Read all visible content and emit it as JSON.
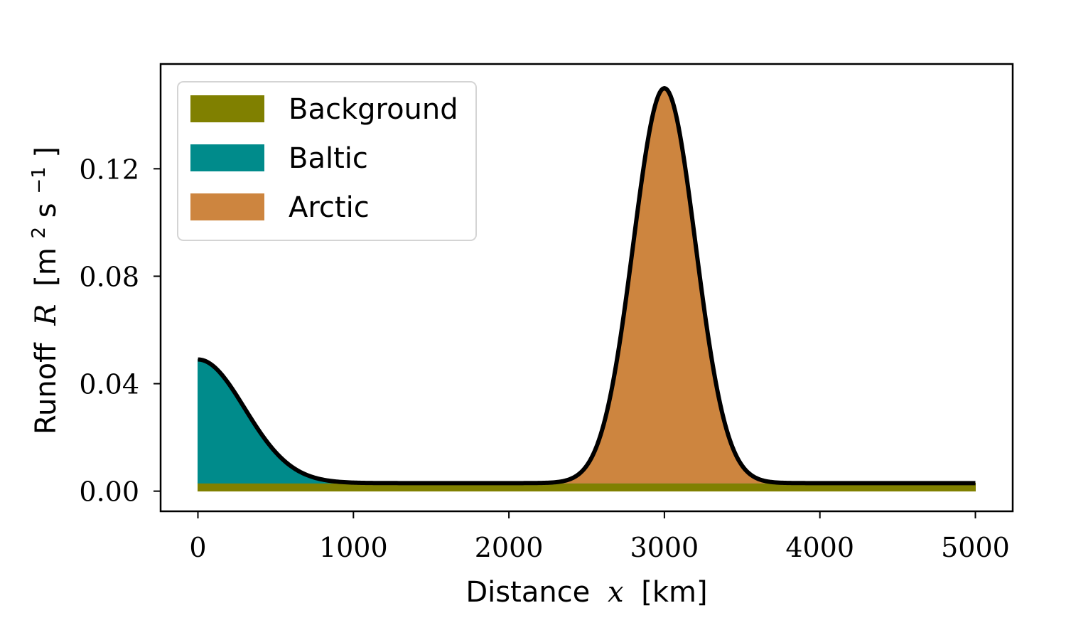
{
  "chart_data": {
    "type": "area",
    "title": "",
    "xlabel": {
      "prefix": "Distance",
      "var": "x",
      "unit": "[km]"
    },
    "ylabel": {
      "prefix": "Runoff",
      "var": "R",
      "unit_open": "[m",
      "unit_exp1": "2",
      "unit_mid": "s",
      "unit_exp2": "−1",
      "unit_close": "]"
    },
    "xlim": [
      -240,
      5240
    ],
    "ylim": [
      -0.0075,
      0.159
    ],
    "x_ticks": [
      0,
      1000,
      2000,
      3000,
      4000,
      5000
    ],
    "x_tick_labels": [
      "0",
      "1000",
      "2000",
      "3000",
      "4000",
      "5000"
    ],
    "y_ticks": [
      0.0,
      0.04,
      0.08,
      0.12
    ],
    "y_tick_labels": [
      "0.00",
      "0.04",
      "0.08",
      "0.12"
    ],
    "grid": false,
    "legend_position": "top-left",
    "series": [
      {
        "name": "Background",
        "color": "#808000",
        "model": "constant",
        "value": 0.003
      },
      {
        "name": "Baltic",
        "color": "#008b8b",
        "model": "gaussian",
        "amplitude": 0.046,
        "center": 0,
        "sigma": 300
      },
      {
        "name": "Arctic",
        "color": "#cd853f",
        "model": "gaussian",
        "amplitude": 0.147,
        "center": 3000,
        "sigma": 200
      }
    ],
    "total_curve": {
      "color": "#000000"
    },
    "x_range": [
      0,
      5000
    ]
  }
}
